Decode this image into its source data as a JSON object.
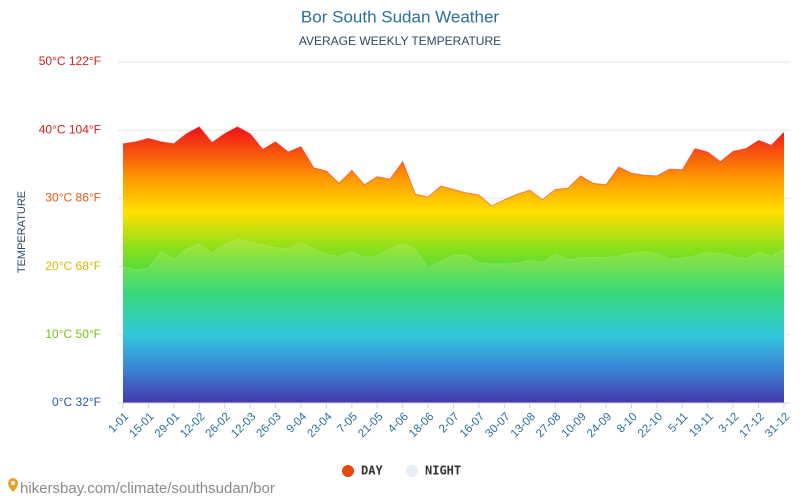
{
  "chart_data": {
    "type": "area",
    "title": "Bor South Sudan Weather",
    "subtitle": "AVERAGE WEEKLY TEMPERATURE",
    "ylabel": "TEMPERATURE",
    "source": "hikersbay.com/climate/southsudan/bor",
    "categories": [
      "1-01",
      null,
      "15-01",
      null,
      "29-01",
      null,
      "12-02",
      null,
      "26-02",
      null,
      "12-03",
      null,
      "26-03",
      null,
      "9-04",
      null,
      "23-04",
      null,
      "7-05",
      null,
      "21-05",
      null,
      "4-06",
      null,
      "18-06",
      null,
      "2-07",
      null,
      "16-07",
      null,
      "30-07",
      null,
      "13-08",
      null,
      "27-08",
      null,
      "10-09",
      null,
      "24-09",
      null,
      "8-10",
      null,
      "22-10",
      null,
      "5-11",
      null,
      "19-11",
      null,
      "3-12",
      null,
      "17-12",
      null,
      "31-12"
    ],
    "series": [
      {
        "name": "DAY",
        "color": "#e8470b",
        "values": [
          38,
          38.3,
          38.8,
          38.3,
          38,
          39.5,
          40.5,
          38.2,
          39.5,
          40.5,
          39.5,
          37.2,
          38.3,
          36.8,
          37.6,
          34.5,
          34,
          32.2,
          34.1,
          32,
          33.2,
          32.8,
          35.4,
          30.6,
          30.2,
          31.8,
          31.3,
          30.8,
          30.5,
          28.9,
          29.8,
          30.6,
          31.2,
          29.8,
          31.3,
          31.5,
          33.3,
          32.2,
          32,
          34.6,
          33.7,
          33.4,
          33.3,
          34.3,
          34.2,
          37.3,
          36.8,
          35.4,
          36.9,
          37.3,
          38.5,
          37.8,
          39.7
        ]
      },
      {
        "name": "NIGHT",
        "color": "#e8eef5",
        "values": [
          20,
          19.5,
          19.8,
          22.2,
          21,
          22.6,
          23.3,
          22,
          23.3,
          24,
          23.6,
          23.2,
          22.8,
          22.6,
          23.5,
          22.6,
          21.8,
          21.5,
          22.2,
          21.3,
          21.6,
          22.6,
          23.3,
          22.6,
          19.8,
          20.8,
          21.7,
          21.7,
          20.5,
          20.4,
          20.4,
          20.5,
          20.9,
          20.6,
          21.9,
          21,
          21.3,
          21.4,
          21.3,
          21.6,
          22,
          22.2,
          21.9,
          21.1,
          21.2,
          21.6,
          22.1,
          21.9,
          21.5,
          21.2,
          22.1,
          21.5,
          22.5
        ]
      }
    ],
    "ylim": [
      0,
      50
    ],
    "yticks": [
      {
        "value": 0,
        "label": "0°C 32°F"
      },
      {
        "value": 10,
        "label": "10°C 50°F"
      },
      {
        "value": 20,
        "label": "20°C 68°F"
      },
      {
        "value": 30,
        "label": "30°C 86°F"
      },
      {
        "value": 40,
        "label": "40°C 104°F"
      },
      {
        "value": 50,
        "label": "50°C 122°F"
      }
    ],
    "grid": true,
    "legend": "bottom"
  }
}
